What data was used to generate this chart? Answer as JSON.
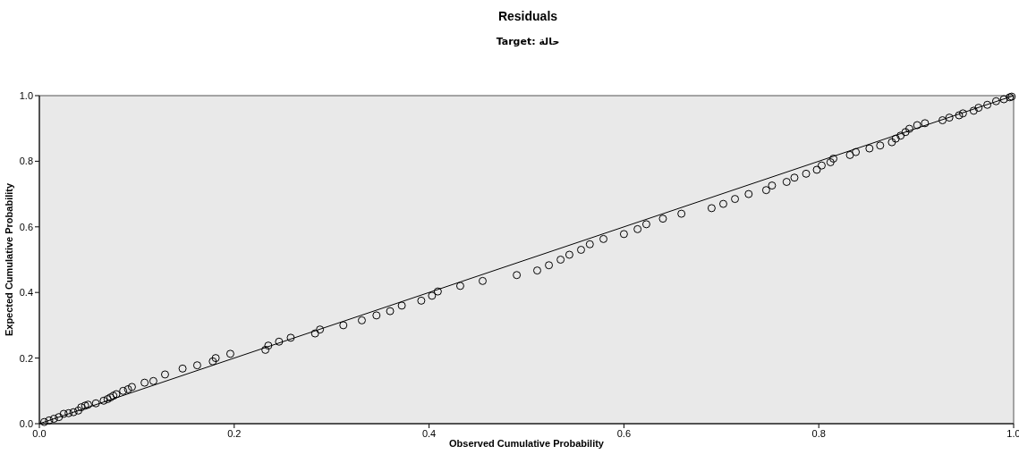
{
  "chart_data": {
    "type": "scatter",
    "title": "Residuals",
    "subtitle": "Target: حالة",
    "xlabel": "Observed Cumulative Probability",
    "ylabel": "Expected Cumulative Probability",
    "xlim": [
      0,
      1
    ],
    "ylim": [
      0,
      1
    ],
    "xticks": [
      {
        "value": 0,
        "label": "0.0"
      },
      {
        "value": 0.2,
        "label": "0.2"
      },
      {
        "value": 0.4,
        "label": "0.4"
      },
      {
        "value": 0.6,
        "label": "0.6"
      },
      {
        "value": 0.8,
        "label": "0.8"
      },
      {
        "value": 1,
        "label": "1.0"
      }
    ],
    "yticks": [
      {
        "value": 0,
        "label": "0.0"
      },
      {
        "value": 0.2,
        "label": "0.2"
      },
      {
        "value": 0.4,
        "label": "0.4"
      },
      {
        "value": 0.6,
        "label": "0.6"
      },
      {
        "value": 0.8,
        "label": "0.8"
      },
      {
        "value": 1,
        "label": "1.0"
      }
    ],
    "series": [
      {
        "color": "#000000",
        "marker": "circle",
        "x": [
          0.005,
          0.01,
          0.015,
          0.02,
          0.025,
          0.03,
          0.035,
          0.04,
          0.043,
          0.047,
          0.05,
          0.058,
          0.066,
          0.07,
          0.073,
          0.076,
          0.079,
          0.086,
          0.091,
          0.095,
          0.108,
          0.117,
          0.129,
          0.147,
          0.162,
          0.178,
          0.181,
          0.196,
          0.232,
          0.235,
          0.246,
          0.258,
          0.283,
          0.288,
          0.312,
          0.331,
          0.346,
          0.36,
          0.372,
          0.392,
          0.403,
          0.409,
          0.432,
          0.455,
          0.49,
          0.511,
          0.523,
          0.535,
          0.544,
          0.556,
          0.565,
          0.579,
          0.6,
          0.614,
          0.623,
          0.64,
          0.659,
          0.69,
          0.702,
          0.714,
          0.728,
          0.746,
          0.752,
          0.767,
          0.775,
          0.787,
          0.798,
          0.803,
          0.812,
          0.815,
          0.832,
          0.838,
          0.852,
          0.863,
          0.875,
          0.879,
          0.884,
          0.889,
          0.893,
          0.901,
          0.909,
          0.927,
          0.934,
          0.944,
          0.948,
          0.959,
          0.964,
          0.973,
          0.982,
          0.99,
          0.996,
          0.998
        ],
        "values": [
          0.005,
          0.01,
          0.015,
          0.02,
          0.03,
          0.032,
          0.035,
          0.04,
          0.05,
          0.055,
          0.058,
          0.062,
          0.07,
          0.075,
          0.08,
          0.085,
          0.09,
          0.1,
          0.105,
          0.112,
          0.125,
          0.13,
          0.15,
          0.168,
          0.178,
          0.19,
          0.2,
          0.213,
          0.225,
          0.238,
          0.25,
          0.262,
          0.275,
          0.287,
          0.3,
          0.315,
          0.33,
          0.343,
          0.36,
          0.375,
          0.39,
          0.403,
          0.42,
          0.435,
          0.453,
          0.467,
          0.483,
          0.5,
          0.515,
          0.53,
          0.547,
          0.563,
          0.578,
          0.593,
          0.608,
          0.625,
          0.64,
          0.657,
          0.67,
          0.685,
          0.7,
          0.712,
          0.726,
          0.737,
          0.75,
          0.762,
          0.774,
          0.787,
          0.797,
          0.808,
          0.819,
          0.828,
          0.839,
          0.848,
          0.858,
          0.869,
          0.878,
          0.889,
          0.899,
          0.91,
          0.916,
          0.925,
          0.933,
          0.94,
          0.946,
          0.954,
          0.963,
          0.972,
          0.983,
          0.989,
          0.995,
          0.997
        ]
      },
      {
        "type": "line",
        "color": "#000000",
        "marker": "none",
        "line_style": "solid",
        "x": [
          0,
          1
        ],
        "values": [
          0,
          1
        ]
      }
    ]
  }
}
